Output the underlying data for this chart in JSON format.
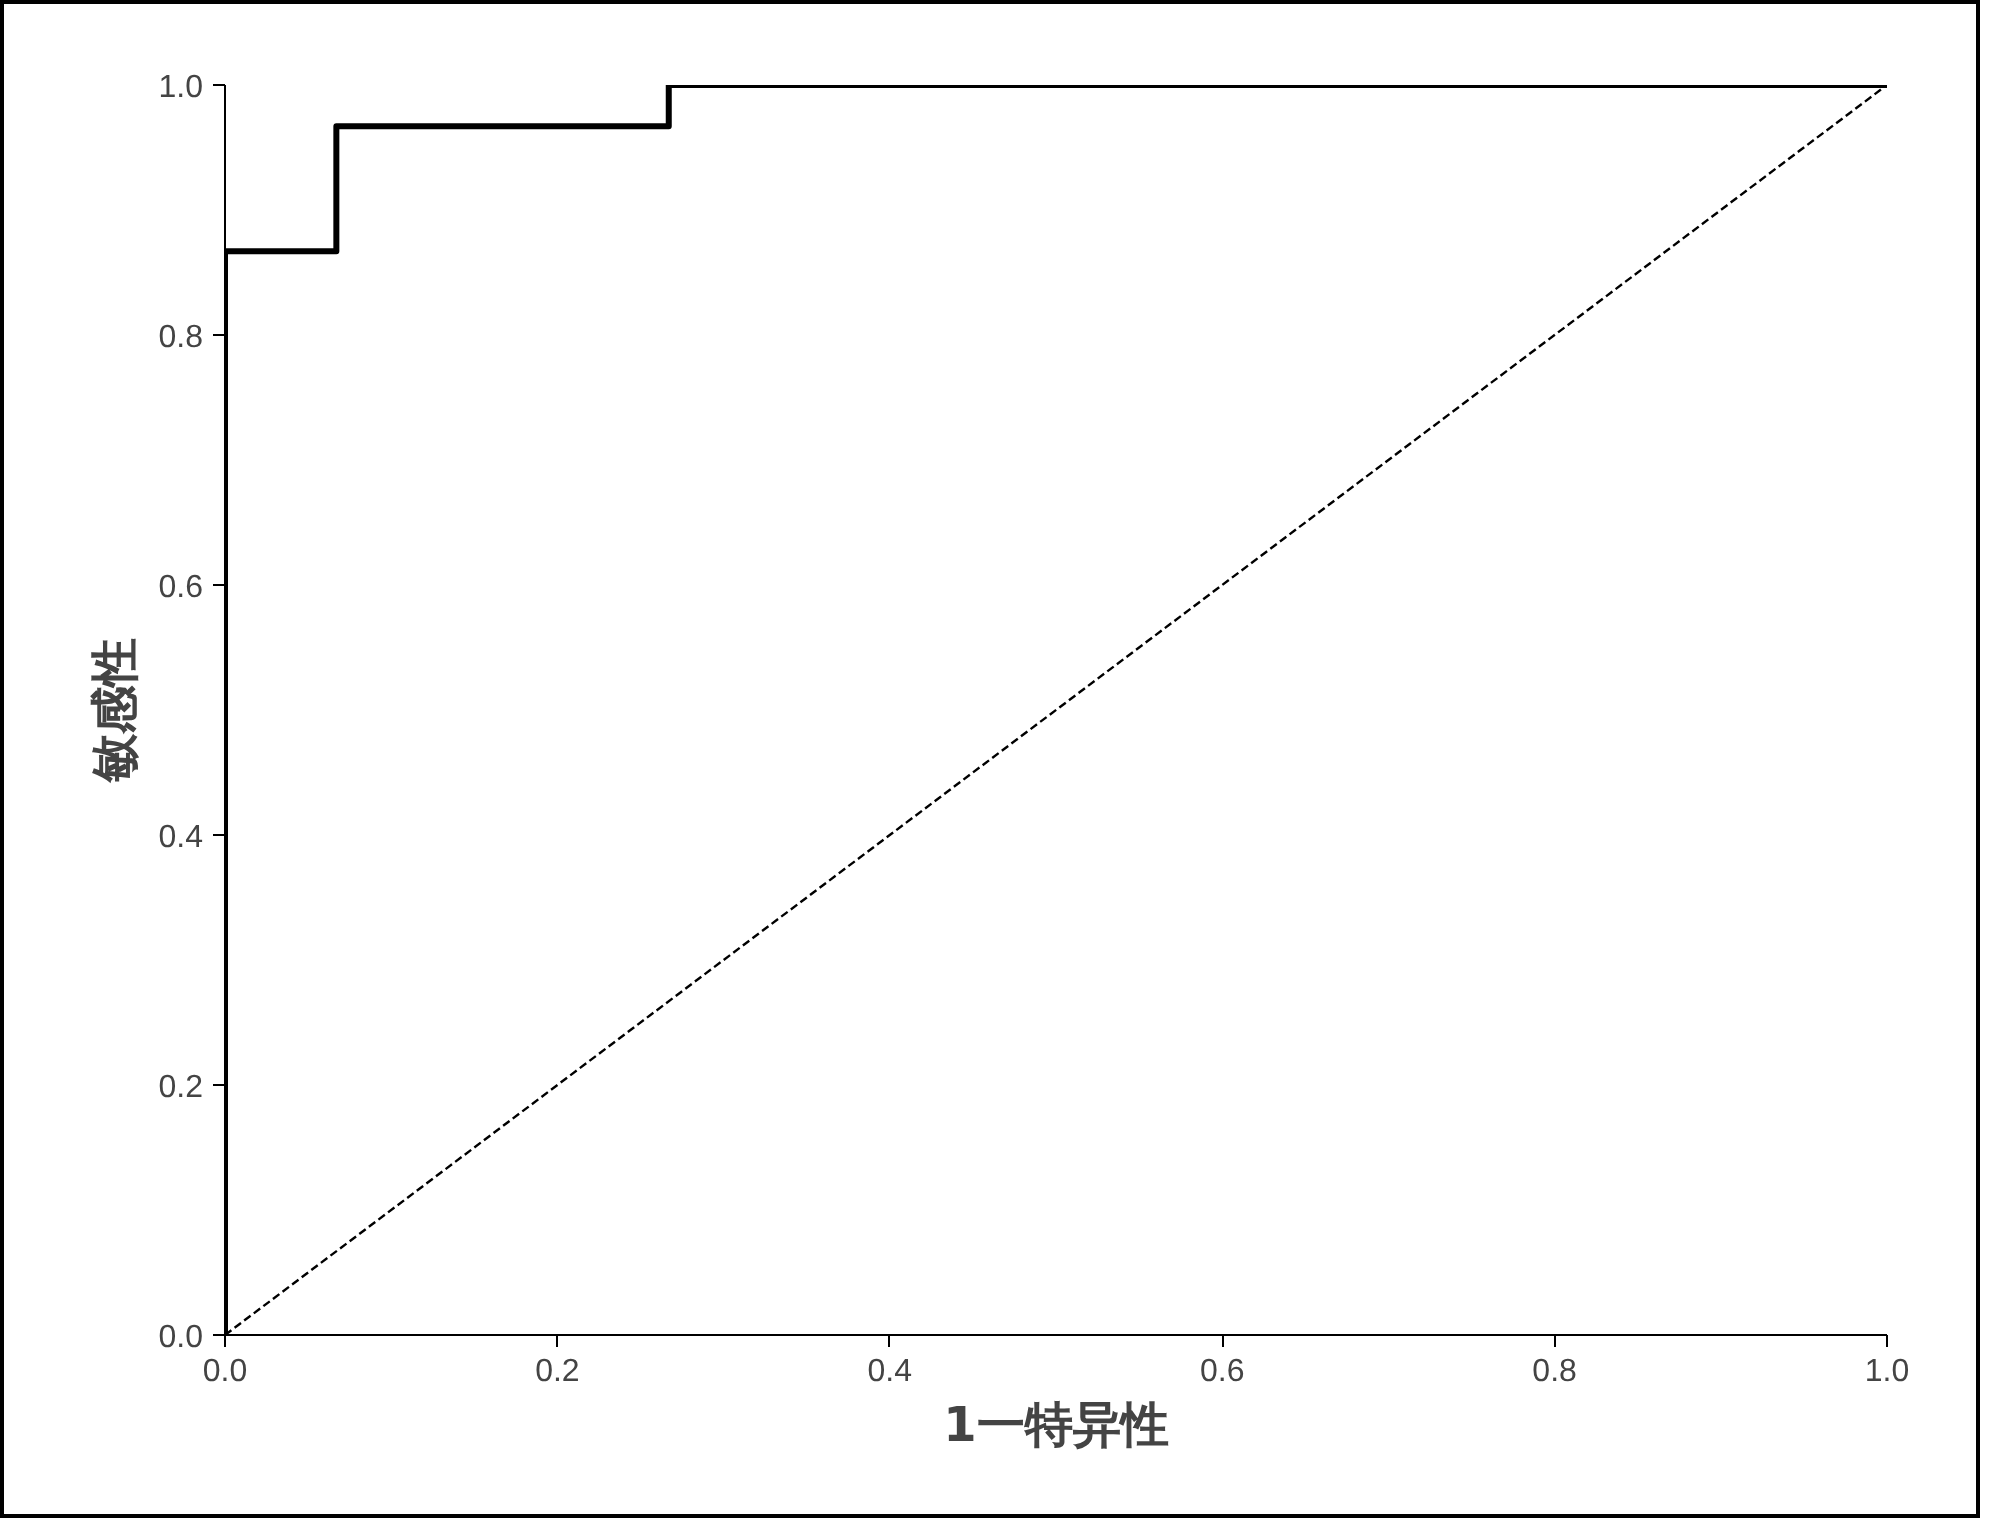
{
  "chart_data": {
    "type": "line",
    "xlabel": "1一特异性",
    "ylabel": "敏感性",
    "xlim": [
      0,
      1
    ],
    "ylim": [
      0,
      1
    ],
    "xticks": [
      {
        "value": 0,
        "label": "0.0"
      },
      {
        "value": 0.2,
        "label": "0.2"
      },
      {
        "value": 0.4,
        "label": "0.4"
      },
      {
        "value": 0.6,
        "label": "0.6"
      },
      {
        "value": 0.8,
        "label": "0.8"
      },
      {
        "value": 1,
        "label": "1.0"
      }
    ],
    "yticks": [
      {
        "value": 0,
        "label": "0.0"
      },
      {
        "value": 0.2,
        "label": "0.2"
      },
      {
        "value": 0.4,
        "label": "0.4"
      },
      {
        "value": 0.6,
        "label": "0.6"
      },
      {
        "value": 0.8,
        "label": "0.8"
      },
      {
        "value": 1,
        "label": "1.0"
      }
    ],
    "grid": false,
    "marker": "none",
    "series": [
      {
        "color": "#000000",
        "line_style": "solid",
        "x": [
          0,
          0,
          0.067,
          0.067,
          0.267,
          0.267,
          1
        ],
        "values": [
          0,
          0.867,
          0.867,
          0.967,
          0.967,
          1,
          1
        ]
      },
      {
        "color": "#000000",
        "line_style": "dashed",
        "x": [
          0,
          1
        ],
        "values": [
          0,
          1
        ]
      }
    ]
  }
}
